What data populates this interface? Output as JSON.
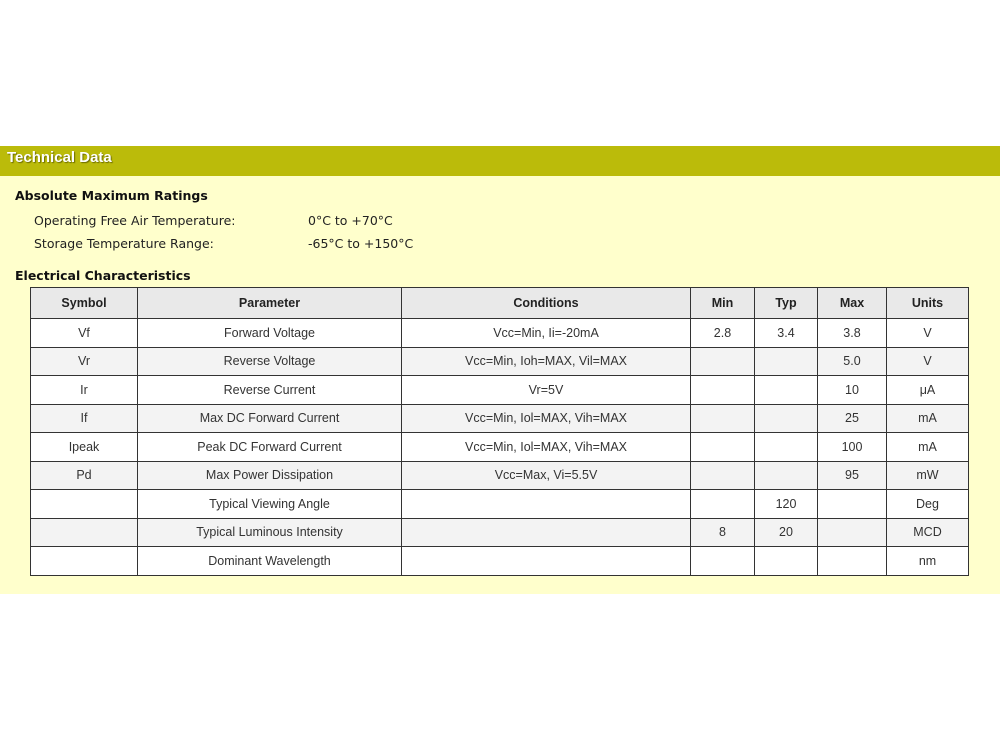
{
  "header": {
    "title": "Technical Data"
  },
  "absolute_max": {
    "heading": "Absolute Maximum Ratings",
    "items": [
      {
        "label": "Operating Free Air Temperature:",
        "value": "0°C to +70°C"
      },
      {
        "label": "Storage Temperature Range:",
        "value": "-65°C to +150°C"
      }
    ]
  },
  "electrical": {
    "heading": "Electrical Characteristics",
    "columns": [
      "Symbol",
      "Parameter",
      "Conditions",
      "Min",
      "Typ",
      "Max",
      "Units"
    ],
    "rows": [
      [
        "Vf",
        "Forward Voltage",
        "Vcc=Min, Ii=-20mA",
        "2.8",
        "3.4",
        "3.8",
        "V"
      ],
      [
        "Vr",
        "Reverse Voltage",
        "Vcc=Min, Ioh=MAX, Vil=MAX",
        "",
        "",
        "5.0",
        "V"
      ],
      [
        "Ir",
        "Reverse Current",
        "Vr=5V",
        "",
        "",
        "10",
        "μA"
      ],
      [
        "If",
        "Max DC Forward Current",
        "Vcc=Min, Iol=MAX, Vih=MAX",
        "",
        "",
        "25",
        "mA"
      ],
      [
        "Ipeak",
        "Peak DC Forward Current",
        "Vcc=Min, Iol=MAX, Vih=MAX",
        "",
        "",
        "100",
        "mA"
      ],
      [
        "Pd",
        "Max Power Dissipation",
        "Vcc=Max, Vi=5.5V",
        "",
        "",
        "95",
        "mW"
      ],
      [
        "",
        "Typical Viewing Angle",
        "",
        "",
        "120",
        "",
        "Deg"
      ],
      [
        "",
        "Typical Luminous Intensity",
        "",
        "8",
        "20",
        "",
        "MCD"
      ],
      [
        "",
        "Dominant Wavelength",
        "",
        "",
        "",
        "",
        "nm"
      ]
    ]
  },
  "colors": {
    "header_bar": "#bbbb0a",
    "panel": "#ffffcc"
  }
}
